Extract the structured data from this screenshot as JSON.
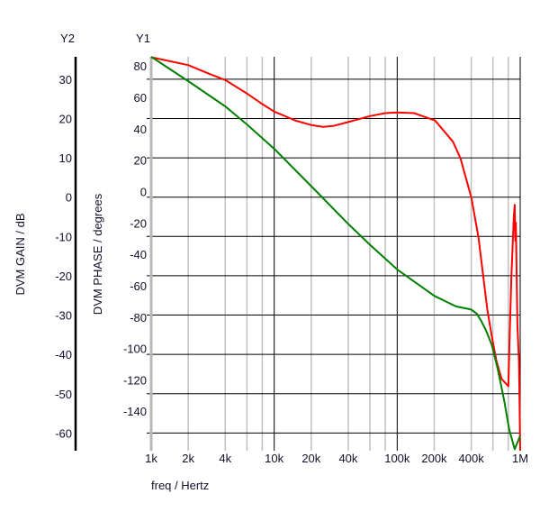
{
  "chart_data": {
    "type": "line",
    "title": "",
    "xlabel": "freq / Hertz",
    "xscale": "log",
    "xlim": [
      1000,
      1000000
    ],
    "x_ticks": [
      {
        "value": 1000,
        "label": "1k"
      },
      {
        "value": 2000,
        "label": "2k"
      },
      {
        "value": 4000,
        "label": "4k"
      },
      {
        "value": 10000,
        "label": "10k"
      },
      {
        "value": 20000,
        "label": "20k"
      },
      {
        "value": 40000,
        "label": "40k"
      },
      {
        "value": 100000,
        "label": "100k"
      },
      {
        "value": 200000,
        "label": "200k"
      },
      {
        "value": 400000,
        "label": "400k"
      },
      {
        "value": 1000000,
        "label": "1M"
      }
    ],
    "y1": {
      "name": "Y1",
      "label": "DVM PHASE / degrees",
      "ylim": [
        -164,
        87
      ],
      "ticks": [
        80,
        60,
        40,
        20,
        0,
        -20,
        -40,
        -60,
        -80,
        -100,
        -120,
        -140
      ]
    },
    "y2": {
      "name": "Y2",
      "label": "DVM GAIN / dB",
      "ylim": [
        -64.5,
        35.7
      ],
      "ticks": [
        30,
        20,
        10,
        0,
        -10,
        -20,
        -30,
        -40,
        -50,
        -60
      ]
    },
    "grid": true,
    "series": [
      {
        "name": "DVM PHASE",
        "axis": "y1",
        "color": "#ff0000",
        "x": [
          1000,
          2000,
          3000,
          4000,
          6000,
          8000,
          10000,
          15000,
          20000,
          25000,
          30000,
          40000,
          60000,
          80000,
          100000,
          137000,
          203000,
          284000,
          327000,
          401000,
          458000,
          498000,
          541000,
          589000,
          641000,
          705000,
          802000,
          815000,
          848000,
          887000,
          902000,
          913000,
          922000,
          949000,
          977000,
          987000,
          1000000
        ],
        "values": [
          86.7,
          81.7,
          76,
          72.2,
          63.6,
          56.9,
          52.1,
          46.3,
          43.5,
          42.3,
          42.9,
          45.4,
          49.2,
          51.1,
          51.5,
          51.1,
          46.4,
          32.9,
          22.2,
          -2.9,
          -28.3,
          -51.3,
          -74.3,
          -91.5,
          -106.8,
          -118.3,
          -122.9,
          -99.4,
          -53.2,
          -14.9,
          -7.3,
          -30.3,
          -18.8,
          -83.9,
          -106.8,
          -129.8,
          -164
        ]
      },
      {
        "name": "DVM GAIN",
        "axis": "y2",
        "color": "#008000",
        "x": [
          1000,
          2000,
          4000,
          6000,
          8000,
          10000,
          20000,
          40000,
          60000,
          100000,
          200000,
          300000,
          400000,
          445000,
          484000,
          527000,
          589000,
          659000,
          738000,
          815000,
          902000,
          1000000
        ],
        "values": [
          35.7,
          29.5,
          23.1,
          18.5,
          15.0,
          12.3,
          2.8,
          -6.8,
          -12.1,
          -18.4,
          -25.1,
          -27.8,
          -28.6,
          -29.7,
          -31.6,
          -33.9,
          -37.7,
          -43.9,
          -51.5,
          -59.2,
          -64.1,
          -60.7
        ]
      }
    ]
  }
}
